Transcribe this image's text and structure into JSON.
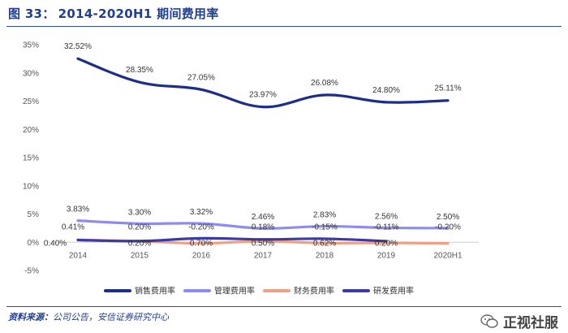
{
  "figure": {
    "number_label": "图 33：",
    "title": "2014-2020H1 期间费用率"
  },
  "source": {
    "label": "资料来源：",
    "text": "公司公告，安信证券研究中心"
  },
  "watermark": {
    "text": "正视社服",
    "icon": "wechat-icon"
  },
  "chart_data": {
    "type": "line",
    "title": "2014-2020H1 期间费用率",
    "categories": [
      "2014",
      "2015",
      "2016",
      "2017",
      "2018",
      "2019",
      "2020H1"
    ],
    "y_ticks": [
      "35%",
      "30%",
      "25%",
      "20%",
      "15%",
      "10%",
      "5%",
      "0%",
      "-5%"
    ],
    "ylim": [
      -5,
      35
    ],
    "ystep": 5,
    "grid": false,
    "legend_position": "bottom",
    "series": [
      {
        "name": "销售费用率",
        "color": "#1d2e8a",
        "values": [
          32.52,
          28.35,
          27.05,
          23.97,
          26.08,
          24.8,
          25.11
        ],
        "labels": [
          "32.52%",
          "28.35%",
          "27.05%",
          "23.97%",
          "26.08%",
          "24.80%",
          "25.11%"
        ]
      },
      {
        "name": "管理费用率",
        "color": "#8c8cf2",
        "values": [
          3.83,
          3.3,
          3.32,
          2.46,
          2.83,
          2.56,
          2.5
        ],
        "labels": [
          "3.83%",
          "3.30%",
          "3.32%",
          "2.46%",
          "2.83%",
          "2.56%",
          "2.50%"
        ]
      },
      {
        "name": "财务费用率",
        "color": "#f0a080",
        "values": [
          0.41,
          0.2,
          -0.2,
          0.18,
          -0.15,
          -0.11,
          -0.2
        ],
        "labels": [
          "0.41%",
          "0.20%",
          "-0.20%",
          "0.18%",
          "-0.15%",
          "-0.11%",
          "-0.20%"
        ]
      },
      {
        "name": "研发费用率",
        "color": "#3a3aa8",
        "values": [
          0.4,
          0.2,
          0.7,
          0.5,
          0.62,
          0.2,
          null
        ],
        "labels": [
          "0.40%",
          "0.20%",
          "0.70%",
          "0.50%",
          "0.62%",
          "0.20%",
          null
        ]
      }
    ]
  }
}
